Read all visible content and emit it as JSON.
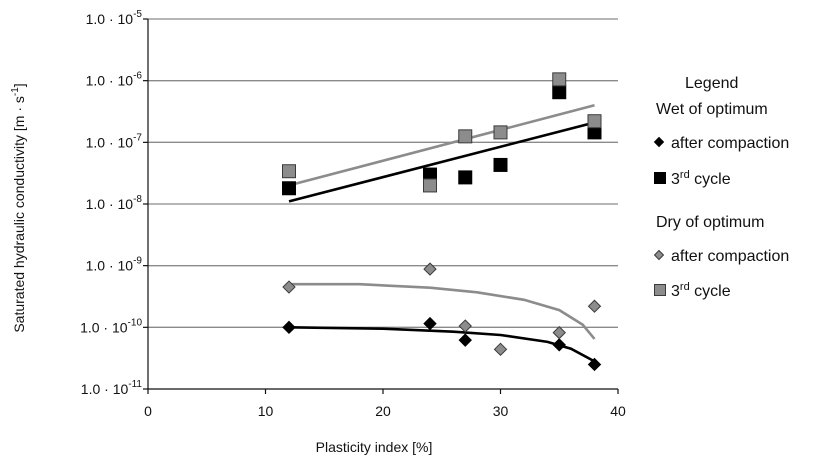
{
  "chart_data": {
    "type": "scatter",
    "xlabel": "Plasticity index [%]",
    "ylabel": "Saturated hydraulic conductivity [m · s",
    "ylabel_sup": "-1",
    "ylabel_end": "]",
    "xlim": [
      0,
      40
    ],
    "ylim": [
      1e-11,
      1e-05
    ],
    "yscale": "log",
    "x_ticks": [
      "0",
      "10",
      "20",
      "30",
      "40"
    ],
    "y_tick_mantissa": "1.0 · 10",
    "y_tick_exponents": [
      "-5",
      "-6",
      "-7",
      "-8",
      "-9",
      "-10",
      "-11"
    ],
    "grid": "horizontal",
    "legend_position": "right",
    "legend": {
      "title": "Legend",
      "groups": [
        {
          "label": "Wet of optimum",
          "entries": [
            {
              "label": "after compaction",
              "sup": "",
              "marker": "diamond",
              "color": "#000000"
            },
            {
              "label": "3",
              "sup": "rd",
              "label_end": " cycle",
              "marker": "square",
              "color": "#000000"
            }
          ]
        },
        {
          "label": "Dry of optimum",
          "entries": [
            {
              "label": "after compaction",
              "sup": "",
              "marker": "diamond",
              "color": "#8c8c8c"
            },
            {
              "label": "3",
              "sup": "rd",
              "label_end": " cycle",
              "marker": "square",
              "color": "#8c8c8c"
            }
          ]
        }
      ]
    },
    "series": [
      {
        "group": "Wet of optimum",
        "type": "after compaction",
        "marker": "diamond",
        "color": "#000000",
        "points": [
          [
            12,
            1e-10
          ],
          [
            24,
            1.15e-10
          ],
          [
            27,
            6.2e-11
          ],
          [
            35,
            5.2e-11
          ],
          [
            38,
            2.5e-11
          ]
        ],
        "trend": [
          [
            12,
            1e-10
          ],
          [
            20,
            9.5e-11
          ],
          [
            26,
            8.5e-11
          ],
          [
            30,
            7.5e-11
          ],
          [
            34,
            5.8e-11
          ],
          [
            36,
            4.5e-11
          ],
          [
            38,
            2.8e-11
          ]
        ]
      },
      {
        "group": "Wet of optimum",
        "type": "3rd cycle",
        "marker": "square",
        "color": "#000000",
        "points": [
          [
            12,
            1.8e-08
          ],
          [
            24,
            3e-08
          ],
          [
            27,
            2.7e-08
          ],
          [
            30,
            4.3e-08
          ],
          [
            35,
            6.5e-07
          ],
          [
            38,
            1.45e-07
          ]
        ],
        "trend": [
          [
            12,
            1.1e-08
          ],
          [
            38,
            2.1e-07
          ]
        ]
      },
      {
        "group": "Dry of optimum",
        "type": "after compaction",
        "marker": "diamond",
        "color": "#8c8c8c",
        "points": [
          [
            12,
            4.5e-10
          ],
          [
            24,
            8.8e-10
          ],
          [
            27,
            1.05e-10
          ],
          [
            30,
            4.4e-11
          ],
          [
            35,
            8.2e-11
          ],
          [
            38,
            2.2e-10
          ]
        ],
        "trend": [
          [
            12,
            5e-10
          ],
          [
            18,
            5e-10
          ],
          [
            24,
            4.4e-10
          ],
          [
            28,
            3.7e-10
          ],
          [
            32,
            2.8e-10
          ],
          [
            35,
            1.9e-10
          ],
          [
            37,
            1.1e-10
          ],
          [
            38,
            6.5e-11
          ]
        ]
      },
      {
        "group": "Dry of optimum",
        "type": "3rd cycle",
        "marker": "square",
        "color": "#8c8c8c",
        "points": [
          [
            12,
            3.4e-08
          ],
          [
            24,
            2e-08
          ],
          [
            27,
            1.25e-07
          ],
          [
            30,
            1.45e-07
          ],
          [
            35,
            1.05e-06
          ],
          [
            38,
            2.2e-07
          ]
        ],
        "trend": [
          [
            12,
            2e-08
          ],
          [
            38,
            4e-07
          ]
        ]
      }
    ]
  }
}
